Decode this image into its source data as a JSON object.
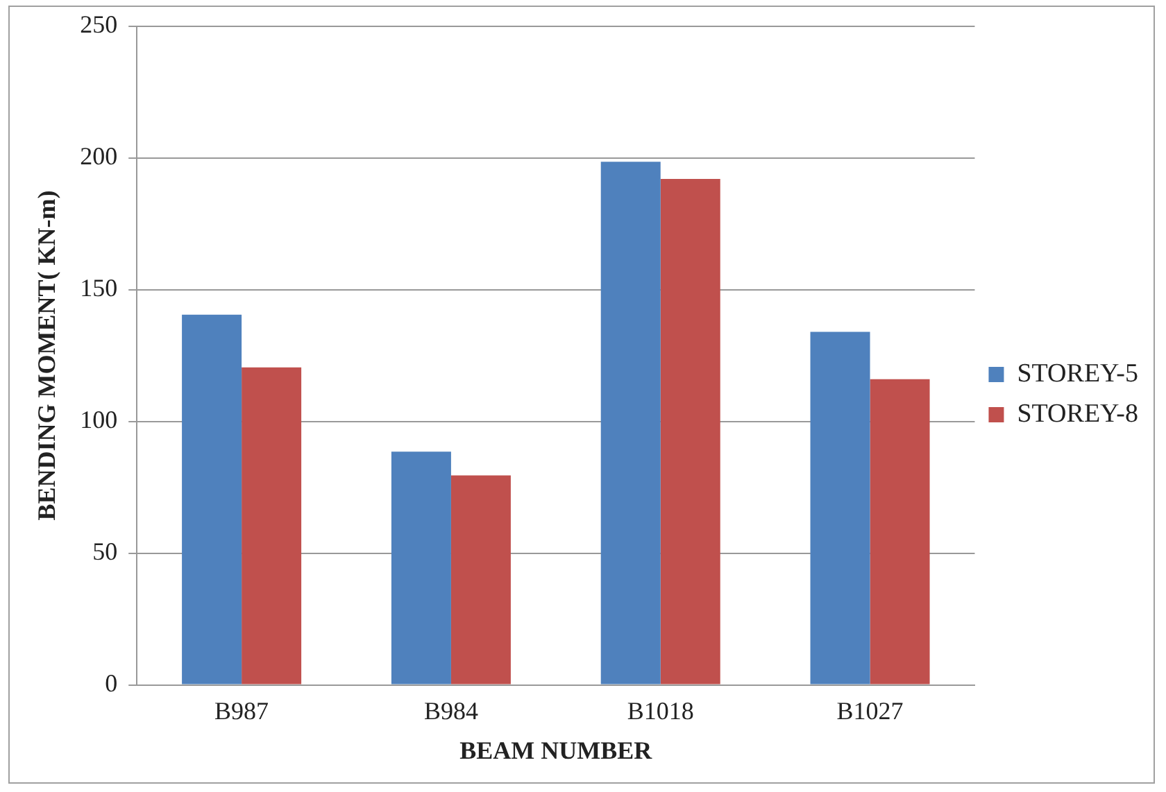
{
  "chart_data": {
    "type": "bar",
    "xlabel": "BEAM NUMBER",
    "ylabel": "BENDING MOMENT( KN-m)",
    "categories": [
      "B987",
      "B984",
      "B1018",
      "B1027"
    ],
    "series": [
      {
        "name": "STOREY-5",
        "color": "#4f81bd",
        "values": [
          140.5,
          88.5,
          198.5,
          134
        ]
      },
      {
        "name": "STOREY-8",
        "color": "#c0504d",
        "values": [
          120.5,
          79.5,
          192,
          116
        ]
      }
    ],
    "ylim": [
      0,
      250
    ],
    "yticks": [
      0,
      50,
      100,
      150,
      200,
      250
    ],
    "grid": "y",
    "legend": "right"
  }
}
